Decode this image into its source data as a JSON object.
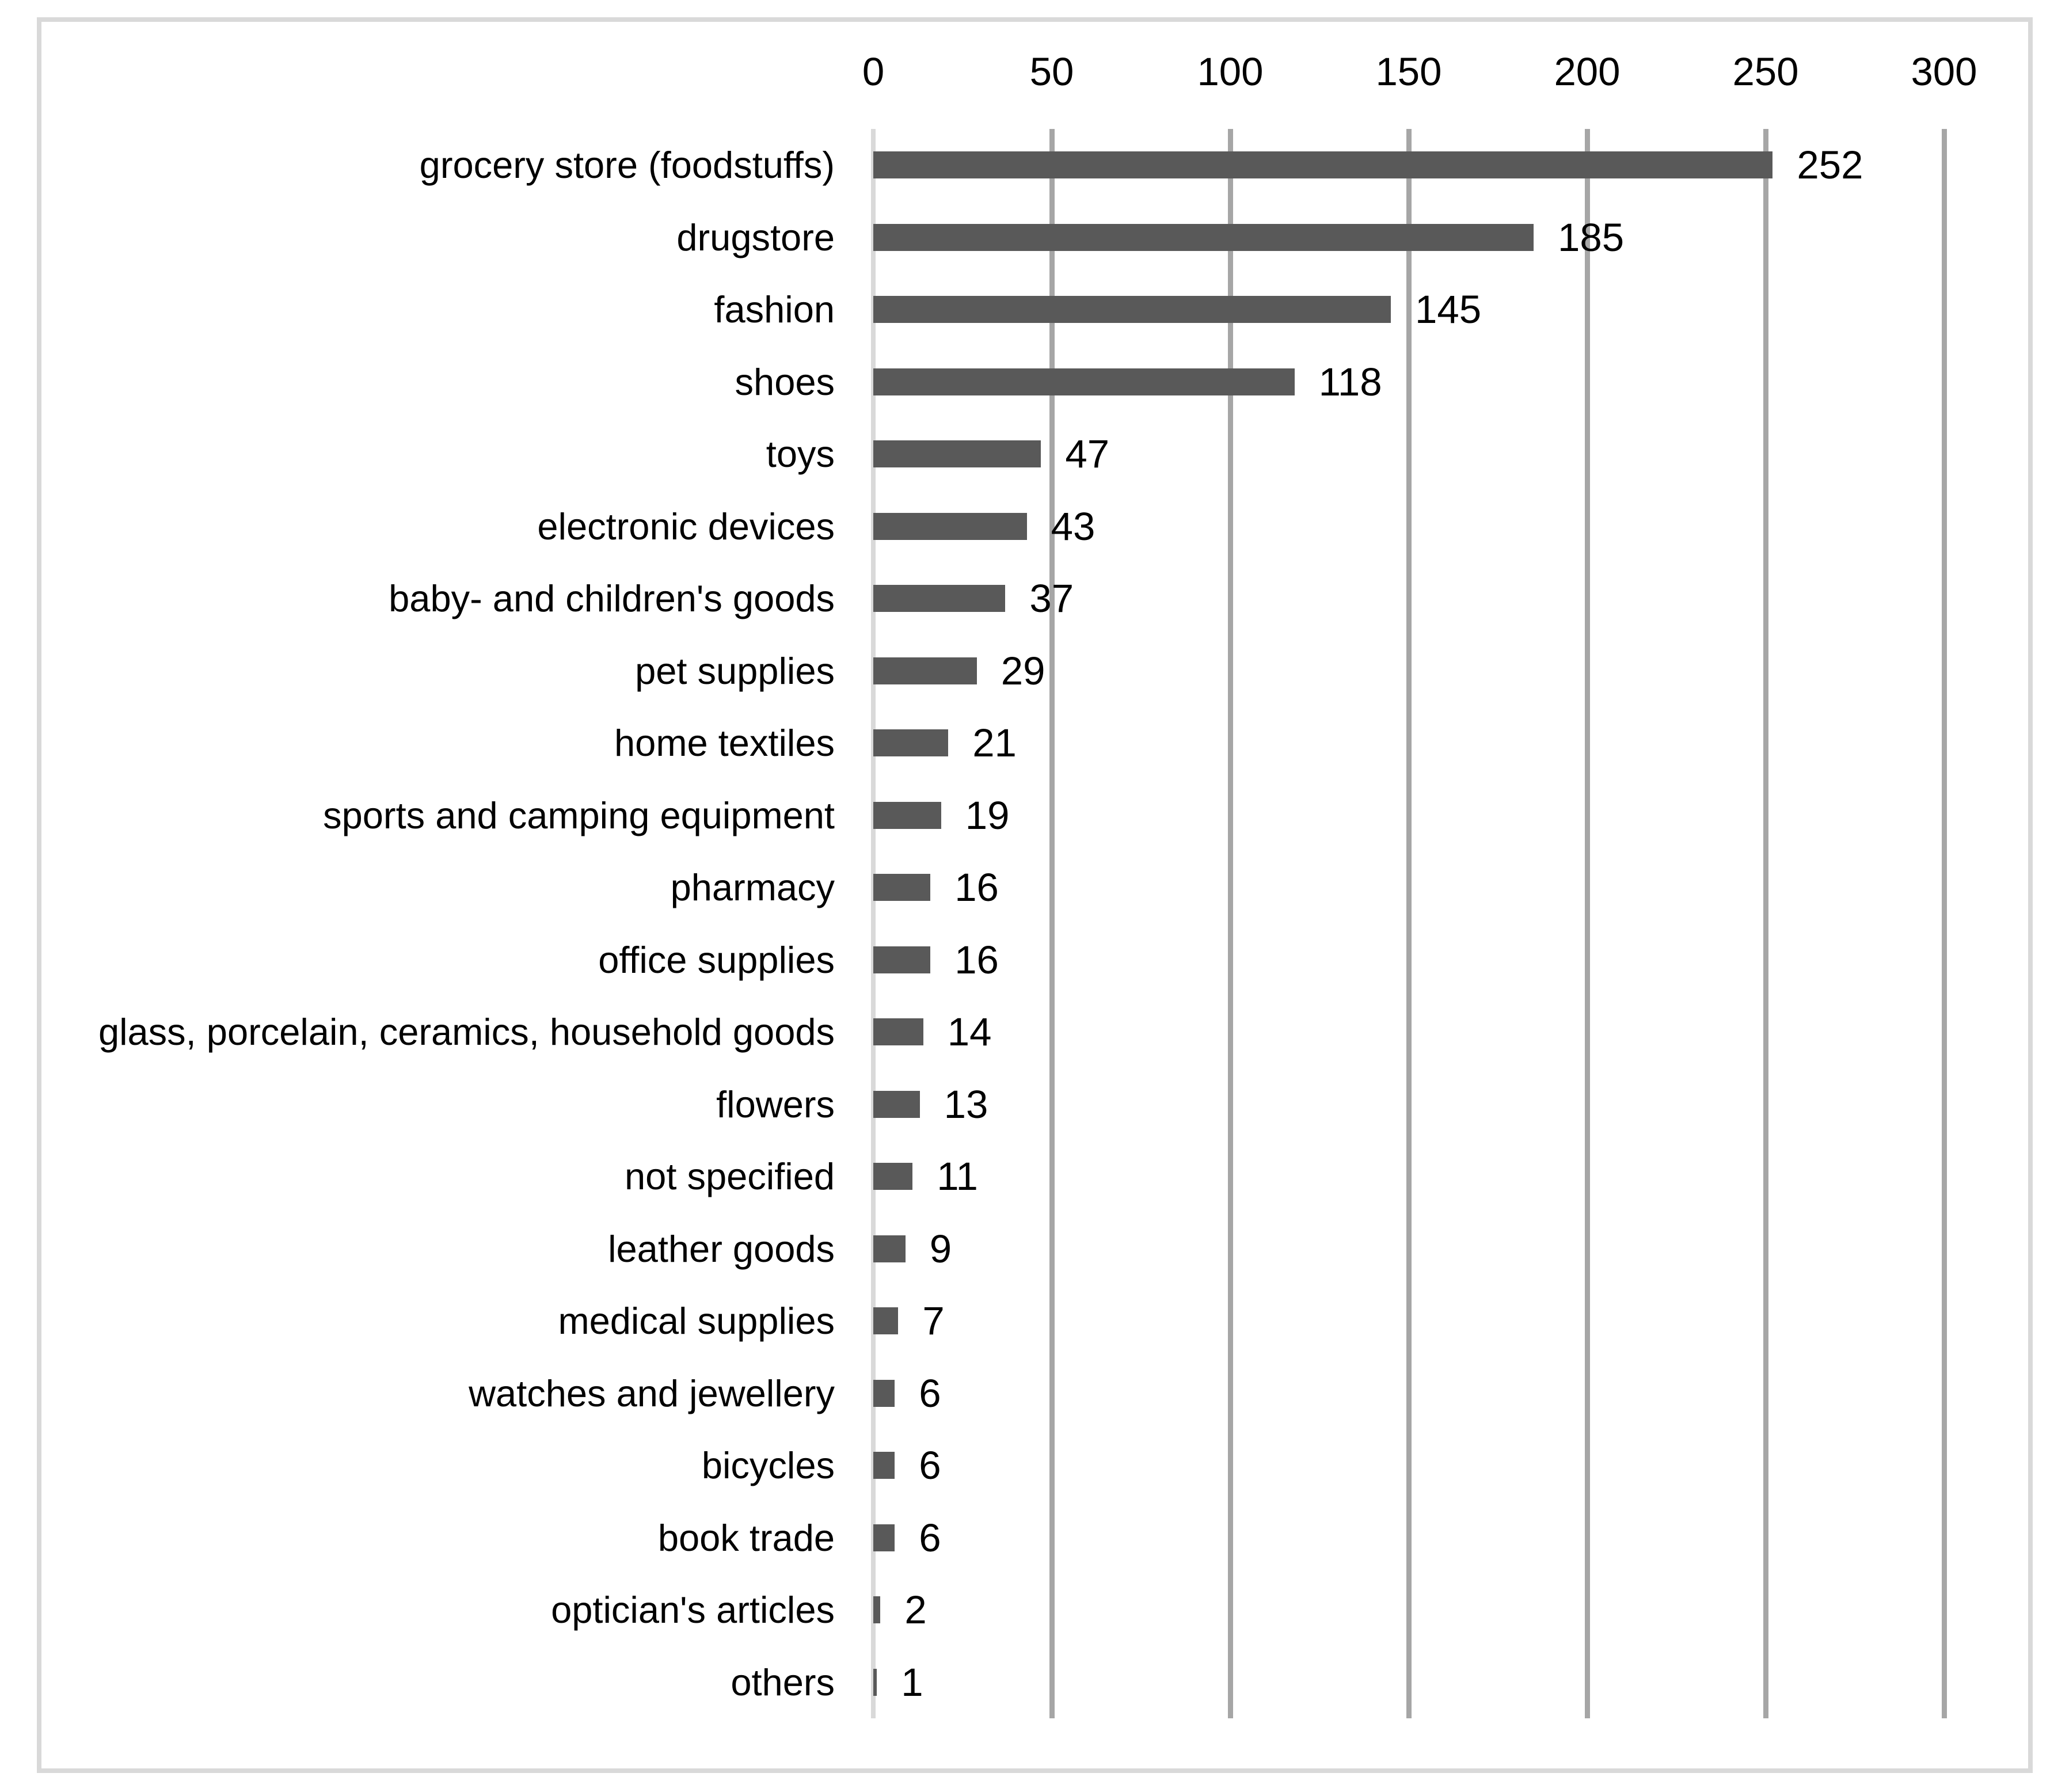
{
  "chart_data": {
    "type": "bar",
    "orientation": "horizontal",
    "title": "",
    "categories": [
      "grocery store (foodstuffs)",
      "drugstore",
      "fashion",
      "shoes",
      "toys",
      "electronic devices",
      "baby- and children's goods",
      "pet supplies",
      "home textiles",
      "sports and camping equipment",
      "pharmacy",
      "office supplies",
      "glass, porcelain, ceramics, household goods",
      "flowers",
      "not specified",
      "leather goods",
      "medical supplies",
      "watches and jewellery",
      "bicycles",
      "book trade",
      "optician's articles",
      "others"
    ],
    "values": [
      252,
      185,
      145,
      118,
      47,
      43,
      37,
      29,
      21,
      19,
      16,
      16,
      14,
      13,
      11,
      9,
      7,
      6,
      6,
      6,
      2,
      1
    ],
    "x_ticks": [
      0,
      50,
      100,
      150,
      200,
      250,
      300
    ],
    "xlim": [
      0,
      300
    ],
    "xlabel": "",
    "ylabel": "",
    "grid": true,
    "legend": false,
    "data_labels_shown": true,
    "tick_label_position": "top",
    "bar_color": "#595959",
    "grid_color": "#a6a6a6",
    "zero_axis_line_color": "#d9d9d9",
    "frame_border_color": "#d9d9d9",
    "text_color": "#000000",
    "background_color": "#ffffff"
  }
}
